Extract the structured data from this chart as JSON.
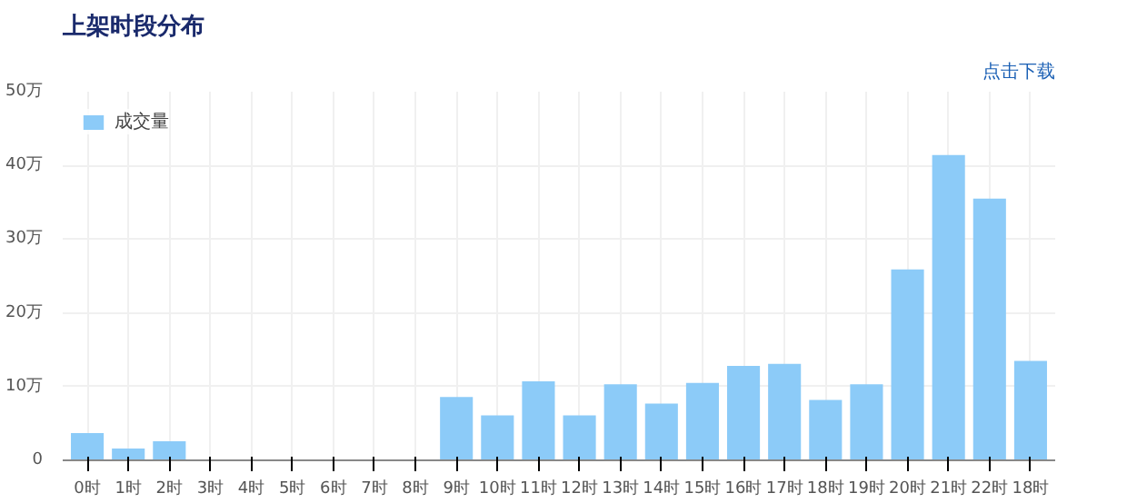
{
  "chart_data": {
    "type": "bar",
    "title": "上架时段分布",
    "annotations": [
      "点击下载"
    ],
    "categories": [
      "0时",
      "1时",
      "2时",
      "3时",
      "4时",
      "5时",
      "6时",
      "7时",
      "8时",
      "9时",
      "10时",
      "11时",
      "12时",
      "13时",
      "14时",
      "15时",
      "16时",
      "17时",
      "18时",
      "19时",
      "20时",
      "21时",
      "22时",
      "18时"
    ],
    "series": [
      {
        "name": "成交量",
        "color": "#8ccbf8",
        "values": [
          3.7,
          1.6,
          2.6,
          0,
          0,
          0,
          0,
          0,
          0,
          8.6,
          6.1,
          10.7,
          6.1,
          10.3,
          7.7,
          10.5,
          12.8,
          13.1,
          8.2,
          10.3,
          25.9,
          41.4,
          35.5,
          13.5
        ]
      }
    ],
    "ylim": [
      0,
      50
    ],
    "yticks": [
      0,
      {
        "value": 10,
        "label": "10万"
      },
      {
        "value": 20,
        "label": "20万"
      },
      {
        "value": 30,
        "label": "30万"
      },
      {
        "value": 40,
        "label": "40万"
      },
      {
        "value": 50,
        "label": "50万"
      }
    ],
    "grid": true,
    "legend": "top left"
  }
}
